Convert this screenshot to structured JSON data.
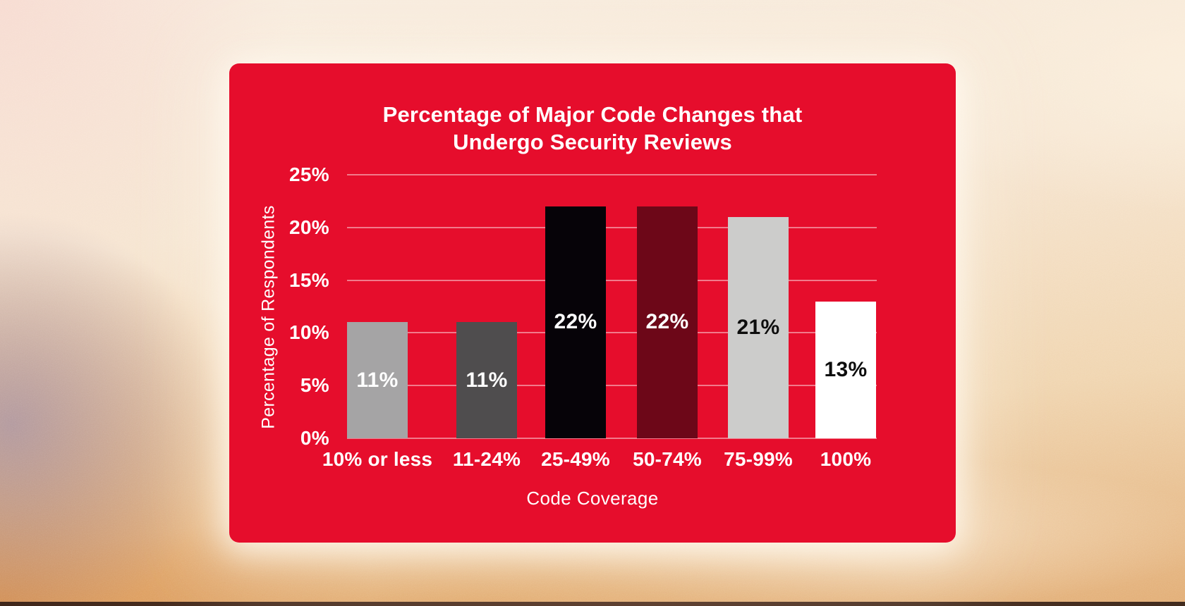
{
  "background": {
    "top_color": "#f8ecdf",
    "bottom_color": "#e2ad75",
    "purple_blob_color": "#a692a4",
    "orange_corner_color": "#d5863e",
    "bottom_edge_color": "#321c14"
  },
  "card": {
    "bg_color": "#e60d2c",
    "glow_color": "#fff8ec"
  },
  "chart_data": {
    "type": "bar",
    "title": "Percentage of Major Code Changes that Undergo Security Reviews",
    "title_lines": [
      "Percentage of Major Code Changes that",
      "Undergo Security Reviews"
    ],
    "xlabel": "Code Coverage",
    "ylabel": "Percentage of Respondents",
    "categories": [
      "10% or less",
      "11-24%",
      "25-49%",
      "50-74%",
      "75-99%",
      "100%"
    ],
    "values": [
      11,
      11,
      22,
      22,
      21,
      13
    ],
    "bar_labels": [
      "11%",
      "11%",
      "22%",
      "22%",
      "21%",
      "13%"
    ],
    "bar_colors": [
      "#a5a4a5",
      "#4f4d4e",
      "#060308",
      "#6d0718",
      "#cccccb",
      "#ffffff"
    ],
    "bar_label_colors": [
      "#ffffff",
      "#ffffff",
      "#ffffff",
      "#ffffff",
      "#0d0d0d",
      "#0d0d0d"
    ],
    "ylim": [
      0,
      25
    ],
    "ytick_labels": [
      "25%",
      "20%",
      "15%",
      "10%",
      "5%",
      "0%"
    ],
    "ytick_values": [
      25,
      20,
      15,
      10,
      5,
      0
    ],
    "grid": true,
    "gridline_color": "rgba(255,255,255,0.45)",
    "legend": "none"
  }
}
